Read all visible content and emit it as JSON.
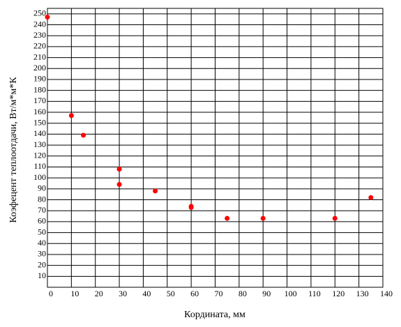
{
  "chart_data": {
    "type": "scatter",
    "x_label": "Кордината, мм",
    "y_label": "Коэфецент теплоотдачи, Вт/м*м*К",
    "x": [
      0,
      10,
      15,
      30,
      30,
      45,
      60,
      60,
      75,
      90,
      120,
      135
    ],
    "values": [
      247,
      157,
      139,
      108,
      94,
      88,
      74,
      73,
      63,
      63,
      63,
      82
    ],
    "color": "#ff0000",
    "xlim": [
      0,
      140
    ],
    "ylim": [
      0,
      255
    ],
    "xticks": [
      0,
      10,
      20,
      30,
      40,
      50,
      60,
      70,
      80,
      90,
      100,
      110,
      120,
      130,
      140
    ],
    "yticks": [
      10,
      20,
      30,
      40,
      50,
      60,
      70,
      80,
      90,
      100,
      110,
      120,
      130,
      140,
      150,
      160,
      170,
      180,
      190,
      200,
      210,
      220,
      230,
      240,
      250
    ],
    "grid": true
  }
}
